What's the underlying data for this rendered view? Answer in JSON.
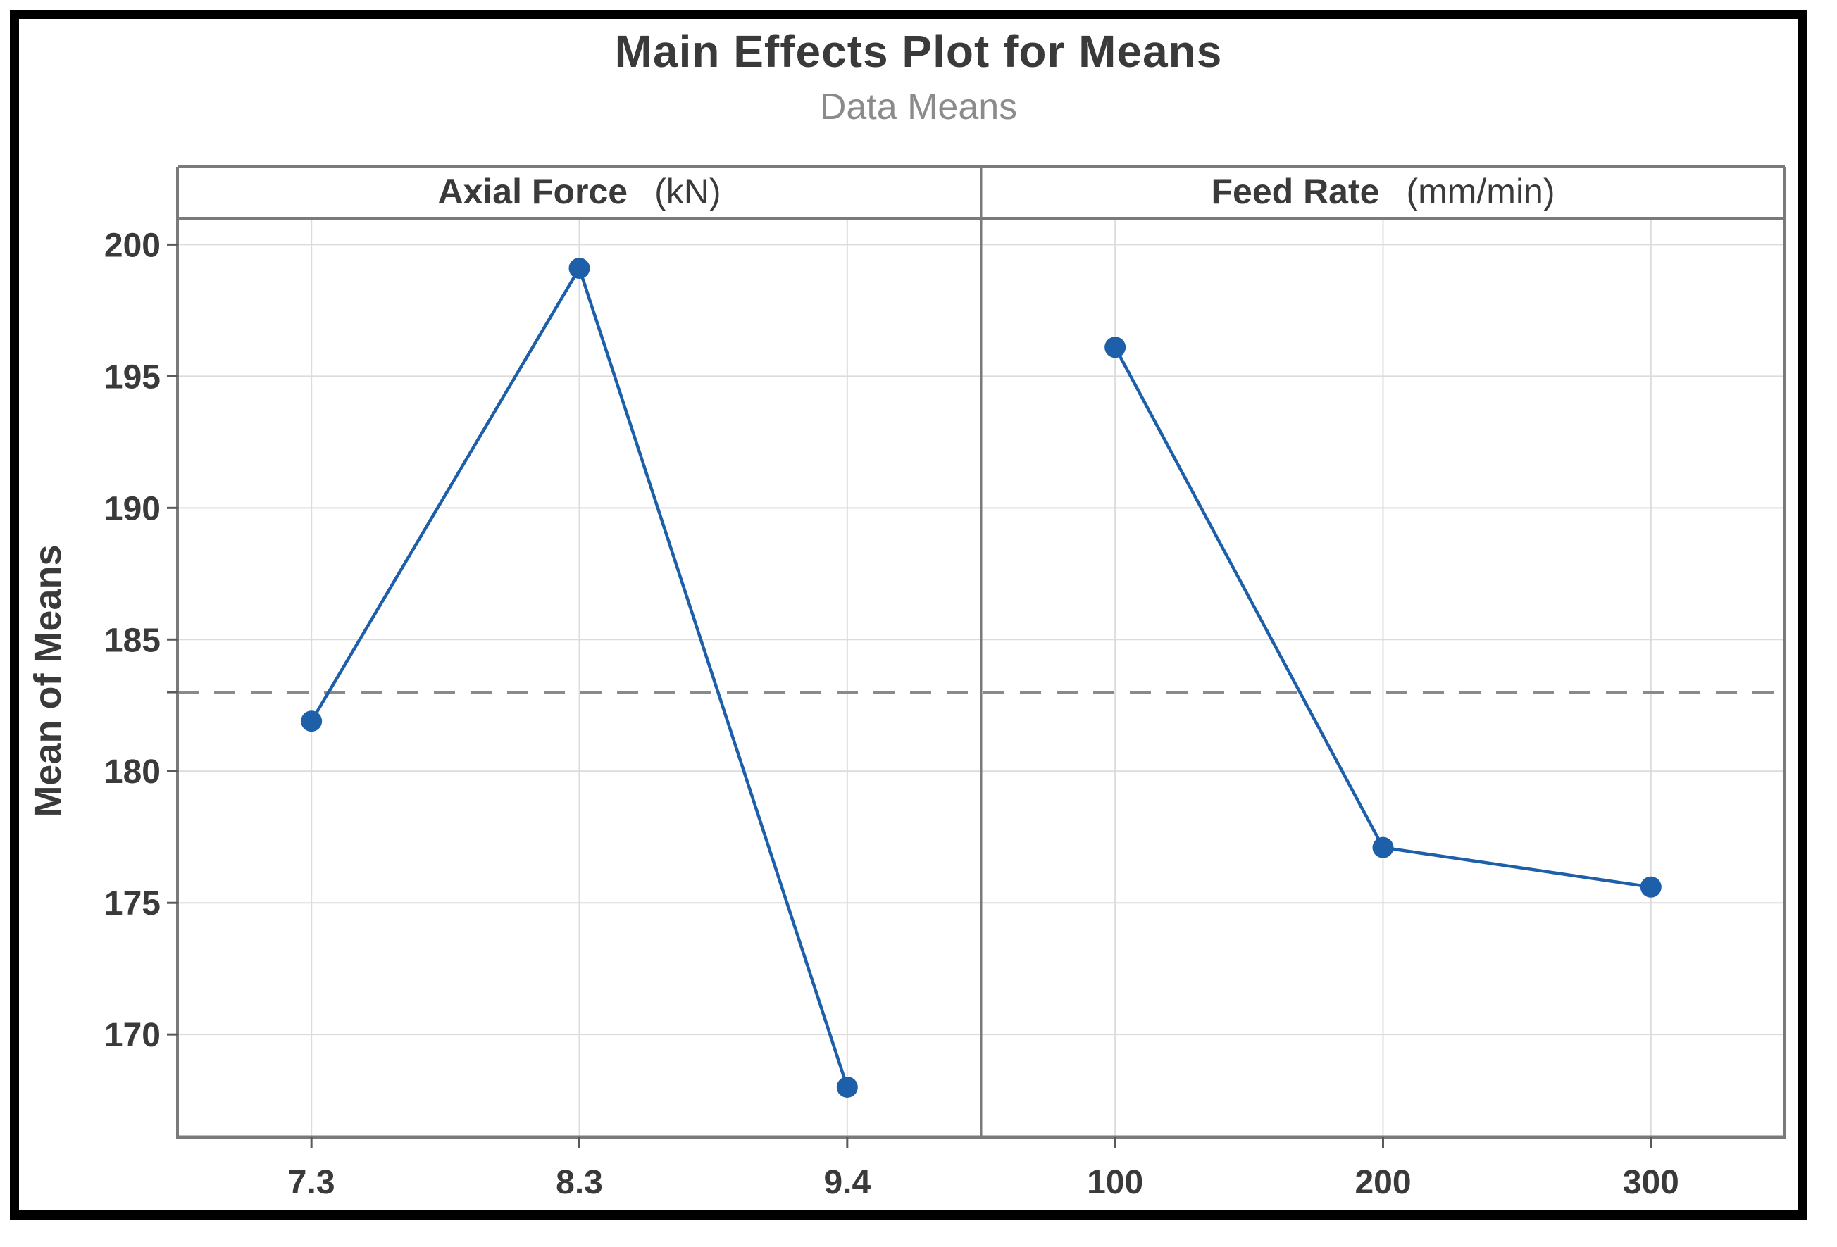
{
  "header": {
    "title": "Main Effects Plot for Means",
    "subtitle": "Data Means"
  },
  "chart_data": {
    "type": "line",
    "title": "Main Effects Plot for Means",
    "subtitle": "Data Means",
    "ylabel": "Mean of Means",
    "yticks": [
      170,
      175,
      180,
      185,
      190,
      195,
      200
    ],
    "ylim": [
      166.1,
      201.0
    ],
    "grid": true,
    "legend": "none",
    "reference_line": 183.0,
    "panels": [
      {
        "label": "Axial Force",
        "unit": "(kN)",
        "categories": [
          "7.3",
          "8.3",
          "9.4"
        ],
        "values": [
          181.9,
          199.1,
          168.0
        ]
      },
      {
        "label": "Feed Rate",
        "unit": "(mm/min)",
        "categories": [
          "100",
          "200",
          "300"
        ],
        "values": [
          196.1,
          177.1,
          175.6
        ]
      }
    ],
    "colors": {
      "series": "#1E5FA9",
      "point": "#1E5FA9",
      "reference": "#8a8a8a",
      "gridline": "#dcdcdc",
      "panel_border": "#7a7a7a",
      "axis_line": "#7a7a7a",
      "tick": "#5a5a5a",
      "text": "#3a3a3a",
      "subtitle_text": "#8b8b8b"
    }
  }
}
